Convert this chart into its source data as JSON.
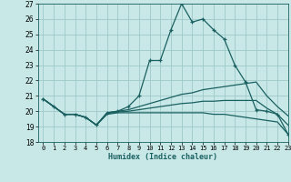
{
  "xlabel": "Humidex (Indice chaleur)",
  "ylabel": "",
  "xlim": [
    -0.5,
    23
  ],
  "ylim": [
    18,
    27
  ],
  "xticks": [
    0,
    1,
    2,
    3,
    4,
    5,
    6,
    7,
    8,
    9,
    10,
    11,
    12,
    13,
    14,
    15,
    16,
    17,
    18,
    19,
    20,
    21,
    22,
    23
  ],
  "yticks": [
    18,
    19,
    20,
    21,
    22,
    23,
    24,
    25,
    26,
    27
  ],
  "background_color": "#c8e8e8",
  "grid_color": "#a0c8c8",
  "line_color": "#1a6060",
  "lines": [
    {
      "x": [
        0,
        1,
        2,
        3,
        4,
        5,
        6,
        7,
        8,
        9,
        10,
        11,
        12,
        13,
        14,
        15,
        16,
        17,
        18,
        19,
        20,
        21,
        22,
        23
      ],
      "y": [
        20.8,
        20.3,
        19.8,
        19.8,
        19.6,
        19.1,
        19.9,
        20.0,
        20.3,
        21.0,
        23.3,
        23.3,
        25.3,
        27.0,
        25.8,
        26.0,
        25.3,
        24.7,
        23.0,
        21.9,
        20.1,
        20.0,
        19.8,
        18.5
      ],
      "marker": "+"
    },
    {
      "x": [
        0,
        1,
        2,
        3,
        4,
        5,
        6,
        7,
        8,
        9,
        10,
        11,
        12,
        13,
        14,
        15,
        16,
        17,
        18,
        19,
        20,
        21,
        22,
        23
      ],
      "y": [
        20.8,
        20.3,
        19.8,
        19.8,
        19.6,
        19.1,
        19.9,
        20.0,
        20.1,
        20.3,
        20.5,
        20.7,
        20.9,
        21.1,
        21.2,
        21.4,
        21.5,
        21.6,
        21.7,
        21.8,
        21.9,
        21.0,
        20.3,
        19.7
      ],
      "marker": null
    },
    {
      "x": [
        0,
        1,
        2,
        3,
        4,
        5,
        6,
        7,
        8,
        9,
        10,
        11,
        12,
        13,
        14,
        15,
        16,
        17,
        18,
        19,
        20,
        21,
        22,
        23
      ],
      "y": [
        20.8,
        20.3,
        19.8,
        19.8,
        19.6,
        19.1,
        19.8,
        19.9,
        19.9,
        19.9,
        19.9,
        19.9,
        19.9,
        19.9,
        19.9,
        19.9,
        19.8,
        19.8,
        19.7,
        19.6,
        19.5,
        19.4,
        19.3,
        18.5
      ],
      "marker": null
    },
    {
      "x": [
        0,
        1,
        2,
        3,
        4,
        5,
        6,
        7,
        8,
        9,
        10,
        11,
        12,
        13,
        14,
        15,
        16,
        17,
        18,
        19,
        20,
        21,
        22,
        23
      ],
      "y": [
        20.8,
        20.3,
        19.8,
        19.8,
        19.6,
        19.1,
        19.85,
        19.95,
        20.0,
        20.1,
        20.2,
        20.3,
        20.4,
        20.5,
        20.55,
        20.65,
        20.65,
        20.7,
        20.7,
        20.7,
        20.7,
        20.2,
        19.8,
        19.1
      ],
      "marker": null
    }
  ]
}
